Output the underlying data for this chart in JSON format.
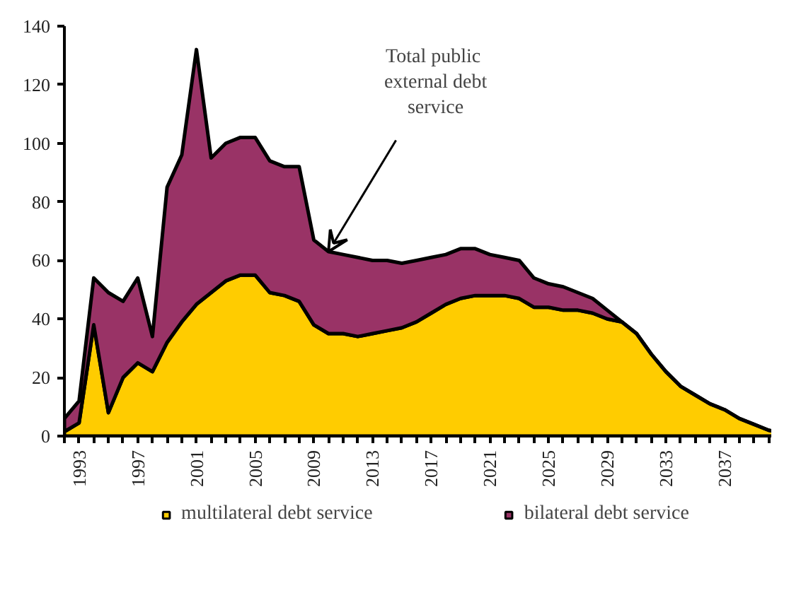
{
  "chart_data": {
    "type": "area",
    "stacked": true,
    "x": [
      1992,
      1993,
      1994,
      1995,
      1996,
      1997,
      1998,
      1999,
      2000,
      2001,
      2002,
      2003,
      2004,
      2005,
      2006,
      2007,
      2008,
      2009,
      2010,
      2011,
      2012,
      2013,
      2014,
      2015,
      2016,
      2017,
      2018,
      2019,
      2020,
      2021,
      2022,
      2023,
      2024,
      2025,
      2026,
      2027,
      2028,
      2029,
      2030,
      2031,
      2032,
      2033,
      2034,
      2035,
      2036,
      2037,
      2038,
      2039,
      2040,
      2041
    ],
    "series": [
      {
        "name": "multilateral debt service",
        "color": "#ffcc00",
        "values": [
          1.5,
          4.5,
          38,
          8,
          20,
          25,
          22,
          32,
          39,
          45,
          49,
          53,
          55,
          55,
          49,
          48,
          46,
          38,
          35,
          35,
          34,
          35,
          36,
          37,
          39,
          42,
          45,
          47,
          48,
          48,
          48,
          47,
          44,
          44,
          43,
          43,
          42,
          40,
          39,
          35,
          28,
          22,
          17,
          14,
          11,
          9,
          6,
          4,
          2,
          1
        ]
      },
      {
        "name": "bilateral debt service",
        "color": "#993366",
        "values": [
          4.5,
          7.5,
          16,
          41,
          26,
          29,
          12,
          53,
          57,
          87,
          46,
          47,
          47,
          47,
          45,
          44,
          46,
          29,
          28,
          27,
          27,
          25,
          24,
          22,
          21,
          19,
          17,
          17,
          16,
          14,
          13,
          13,
          10,
          8,
          8,
          6,
          5,
          3,
          0,
          0,
          0,
          0,
          0,
          0,
          0,
          0,
          0,
          0,
          0,
          0
        ]
      }
    ],
    "xlim": [
      1992,
      2041
    ],
    "xticks": [
      {
        "value": 1992,
        "label": null
      },
      {
        "value": 1993,
        "label": "1993"
      },
      {
        "value": 1994,
        "label": null
      },
      {
        "value": 1995,
        "label": null
      },
      {
        "value": 1996,
        "label": null
      },
      {
        "value": 1997,
        "label": "1997"
      },
      {
        "value": 1998,
        "label": null
      },
      {
        "value": 1999,
        "label": null
      },
      {
        "value": 2000,
        "label": null
      },
      {
        "value": 2001,
        "label": "2001"
      },
      {
        "value": 2002,
        "label": null
      },
      {
        "value": 2003,
        "label": null
      },
      {
        "value": 2004,
        "label": null
      },
      {
        "value": 2005,
        "label": "2005"
      },
      {
        "value": 2006,
        "label": null
      },
      {
        "value": 2007,
        "label": null
      },
      {
        "value": 2008,
        "label": null
      },
      {
        "value": 2009,
        "label": "2009"
      },
      {
        "value": 2010,
        "label": null
      },
      {
        "value": 2011,
        "label": null
      },
      {
        "value": 2012,
        "label": null
      },
      {
        "value": 2013,
        "label": "2013"
      },
      {
        "value": 2014,
        "label": null
      },
      {
        "value": 2015,
        "label": null
      },
      {
        "value": 2016,
        "label": null
      },
      {
        "value": 2017,
        "label": "2017"
      },
      {
        "value": 2018,
        "label": null
      },
      {
        "value": 2019,
        "label": null
      },
      {
        "value": 2020,
        "label": null
      },
      {
        "value": 2021,
        "label": "2021"
      },
      {
        "value": 2022,
        "label": null
      },
      {
        "value": 2023,
        "label": null
      },
      {
        "value": 2024,
        "label": null
      },
      {
        "value": 2025,
        "label": "2025"
      },
      {
        "value": 2026,
        "label": null
      },
      {
        "value": 2027,
        "label": null
      },
      {
        "value": 2028,
        "label": null
      },
      {
        "value": 2029,
        "label": "2029"
      },
      {
        "value": 2030,
        "label": null
      },
      {
        "value": 2031,
        "label": null
      },
      {
        "value": 2032,
        "label": null
      },
      {
        "value": 2033,
        "label": "2033"
      },
      {
        "value": 2034,
        "label": null
      },
      {
        "value": 2035,
        "label": null
      },
      {
        "value": 2036,
        "label": null
      },
      {
        "value": 2037,
        "label": "2037"
      },
      {
        "value": 2038,
        "label": null
      },
      {
        "value": 2039,
        "label": null
      },
      {
        "value": 2040,
        "label": null
      },
      {
        "value": 2041,
        "label": null
      }
    ],
    "ylim": [
      0,
      140
    ],
    "yticks": [
      0,
      20,
      40,
      60,
      80,
      100,
      120,
      140
    ],
    "grid": false,
    "legend": "bottom",
    "annotations": [
      {
        "text": "Total  public\nexternal debt\nservice",
        "x": 2010,
        "y": 63
      }
    ]
  }
}
